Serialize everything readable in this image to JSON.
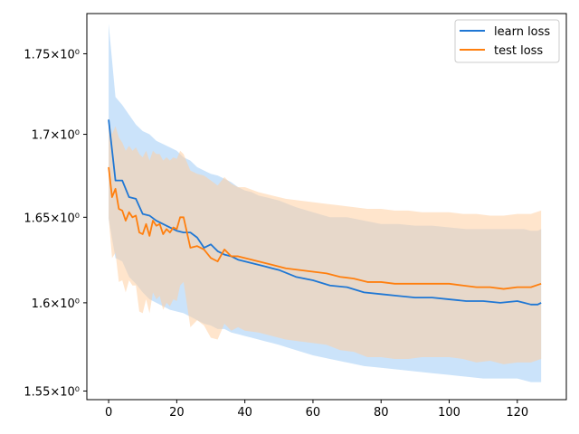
{
  "chart_data": {
    "type": "line",
    "title": "",
    "xlabel": "",
    "ylabel": "",
    "yscale": "log",
    "xlim": [
      -6.4,
      134.4
    ],
    "ylim": [
      1.5452,
      1.7755
    ],
    "grid": false,
    "legend_placement": "top-right",
    "x_ticks": [
      0,
      20,
      40,
      60,
      80,
      100,
      120
    ],
    "x_tick_labels": [
      "0",
      "20",
      "40",
      "60",
      "80",
      "100",
      "120"
    ],
    "y_ticks": [
      1.55,
      1.6,
      1.65,
      1.7,
      1.75
    ],
    "y_tick_labels": [
      "1.55×10⁰",
      "1.6×10⁰",
      "1.65×10⁰",
      "1.7×10⁰",
      "1.75×10⁰"
    ],
    "series": [
      {
        "name": "learn loss",
        "color": "#1f77d4",
        "band_color": "#a8d1f7",
        "x": [
          0,
          2,
          4,
          6,
          8,
          10,
          12,
          14,
          16,
          18,
          20,
          22,
          24,
          26,
          28,
          30,
          32,
          34,
          36,
          38,
          40,
          42,
          44,
          46,
          48,
          50,
          55,
          60,
          65,
          70,
          75,
          80,
          85,
          90,
          95,
          100,
          105,
          110,
          115,
          120,
          122,
          124,
          126,
          127
        ],
        "values": [
          1.709,
          1.672,
          1.672,
          1.662,
          1.661,
          1.652,
          1.651,
          1.648,
          1.646,
          1.644,
          1.642,
          1.641,
          1.641,
          1.638,
          1.632,
          1.634,
          1.63,
          1.628,
          1.627,
          1.625,
          1.624,
          1.623,
          1.622,
          1.621,
          1.62,
          1.619,
          1.615,
          1.613,
          1.61,
          1.609,
          1.606,
          1.605,
          1.604,
          1.603,
          1.603,
          1.602,
          1.601,
          1.601,
          1.6,
          1.601,
          1.6,
          1.599,
          1.599,
          1.6
        ],
        "upper": [
          1.769,
          1.723,
          1.718,
          1.712,
          1.706,
          1.702,
          1.7,
          1.696,
          1.694,
          1.692,
          1.69,
          1.686,
          1.684,
          1.68,
          1.678,
          1.676,
          1.675,
          1.673,
          1.671,
          1.668,
          1.666,
          1.665,
          1.663,
          1.662,
          1.661,
          1.66,
          1.656,
          1.653,
          1.65,
          1.65,
          1.648,
          1.646,
          1.646,
          1.645,
          1.645,
          1.644,
          1.643,
          1.643,
          1.643,
          1.643,
          1.643,
          1.642,
          1.642,
          1.643
        ],
        "lower": [
          1.649,
          1.626,
          1.624,
          1.615,
          1.611,
          1.606,
          1.602,
          1.6,
          1.598,
          1.596,
          1.595,
          1.594,
          1.592,
          1.59,
          1.588,
          1.587,
          1.585,
          1.585,
          1.583,
          1.582,
          1.581,
          1.58,
          1.579,
          1.578,
          1.577,
          1.576,
          1.573,
          1.57,
          1.568,
          1.566,
          1.564,
          1.563,
          1.562,
          1.561,
          1.56,
          1.559,
          1.558,
          1.557,
          1.557,
          1.557,
          1.556,
          1.555,
          1.555,
          1.555
        ]
      },
      {
        "name": "test loss",
        "color": "#ff7f0e",
        "band_color": "#ffcfa3",
        "x": [
          0,
          1,
          2,
          3,
          4,
          5,
          6,
          7,
          8,
          9,
          10,
          11,
          12,
          13,
          14,
          15,
          16,
          17,
          18,
          19,
          20,
          21,
          22,
          24,
          26,
          28,
          30,
          32,
          34,
          36,
          38,
          40,
          44,
          48,
          52,
          56,
          60,
          64,
          68,
          72,
          76,
          80,
          84,
          88,
          92,
          96,
          100,
          104,
          108,
          112,
          116,
          120,
          124,
          127
        ],
        "values": [
          1.68,
          1.662,
          1.667,
          1.655,
          1.654,
          1.648,
          1.653,
          1.65,
          1.651,
          1.641,
          1.64,
          1.646,
          1.639,
          1.648,
          1.645,
          1.646,
          1.64,
          1.643,
          1.641,
          1.644,
          1.643,
          1.65,
          1.65,
          1.632,
          1.633,
          1.631,
          1.626,
          1.624,
          1.631,
          1.627,
          1.627,
          1.626,
          1.624,
          1.622,
          1.62,
          1.619,
          1.618,
          1.617,
          1.615,
          1.614,
          1.612,
          1.612,
          1.611,
          1.611,
          1.611,
          1.611,
          1.611,
          1.61,
          1.609,
          1.609,
          1.608,
          1.609,
          1.609,
          1.611
        ],
        "upper": [
          1.71,
          1.7,
          1.705,
          1.698,
          1.695,
          1.69,
          1.693,
          1.69,
          1.692,
          1.688,
          1.686,
          1.69,
          1.684,
          1.69,
          1.688,
          1.688,
          1.684,
          1.686,
          1.684,
          1.686,
          1.685,
          1.69,
          1.688,
          1.678,
          1.676,
          1.675,
          1.672,
          1.669,
          1.674,
          1.67,
          1.668,
          1.668,
          1.665,
          1.663,
          1.661,
          1.66,
          1.659,
          1.658,
          1.657,
          1.656,
          1.655,
          1.655,
          1.654,
          1.654,
          1.653,
          1.653,
          1.653,
          1.652,
          1.652,
          1.651,
          1.651,
          1.652,
          1.652,
          1.654
        ],
        "lower": [
          1.65,
          1.626,
          1.629,
          1.612,
          1.613,
          1.606,
          1.613,
          1.61,
          1.61,
          1.595,
          1.594,
          1.602,
          1.594,
          1.606,
          1.602,
          1.604,
          1.596,
          1.6,
          1.598,
          1.602,
          1.601,
          1.61,
          1.612,
          1.586,
          1.59,
          1.587,
          1.58,
          1.579,
          1.588,
          1.584,
          1.586,
          1.584,
          1.583,
          1.581,
          1.579,
          1.578,
          1.577,
          1.576,
          1.573,
          1.572,
          1.569,
          1.569,
          1.568,
          1.568,
          1.569,
          1.569,
          1.569,
          1.568,
          1.566,
          1.567,
          1.565,
          1.566,
          1.566,
          1.568
        ]
      }
    ]
  }
}
